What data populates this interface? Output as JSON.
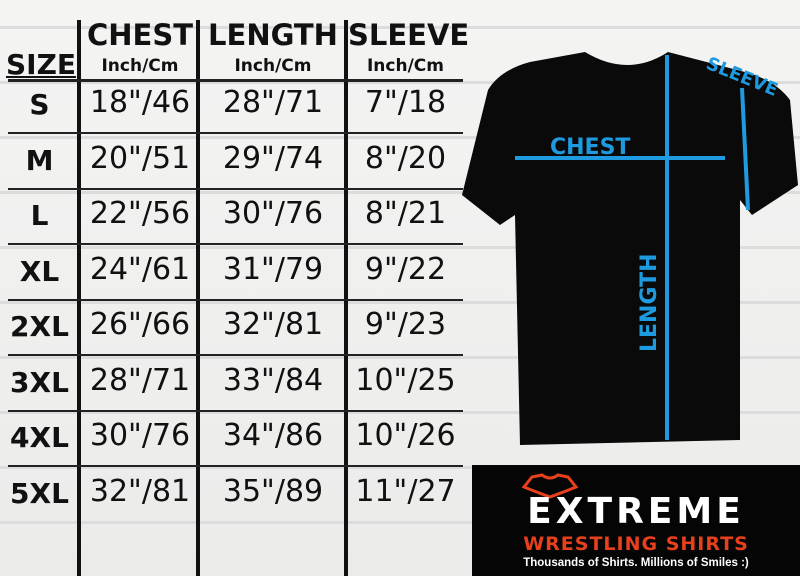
{
  "table": {
    "headers": [
      {
        "title": "SIZE",
        "unit": ""
      },
      {
        "title": "CHEST",
        "unit": "Inch/Cm"
      },
      {
        "title": "LENGTH",
        "unit": "Inch/Cm"
      },
      {
        "title": "SLEEVE",
        "unit": "Inch/Cm"
      }
    ],
    "rows": [
      [
        "S",
        "18\"/46",
        "28\"/71",
        "7\"/18"
      ],
      [
        "M",
        "20\"/51",
        "29\"/74",
        "8\"/20"
      ],
      [
        "L",
        "22\"/56",
        "30\"/76",
        "8\"/21"
      ],
      [
        "XL",
        "24\"/61",
        "31\"/79",
        "9\"/22"
      ],
      [
        "2XL",
        "26\"/66",
        "32\"/81",
        "9\"/23"
      ],
      [
        "3XL",
        "28\"/71",
        "33\"/84",
        "10\"/25"
      ],
      [
        "4XL",
        "30\"/76",
        "34\"/86",
        "10\"/26"
      ],
      [
        "5XL",
        "32\"/81",
        "35\"/89",
        "11\"/27"
      ]
    ]
  },
  "diagram": {
    "chest": "CHEST",
    "length": "LENGTH",
    "sleeve": "SLEEVE",
    "line_color": "#1e9be0",
    "shirt_color": "#0a0a0a"
  },
  "logo": {
    "word1": "EXTREME",
    "word2": "WRESTLING SHIRTS",
    "tagline": "Thousands of Shirts. Millions of Smiles :)",
    "accent": "#e8401c"
  }
}
